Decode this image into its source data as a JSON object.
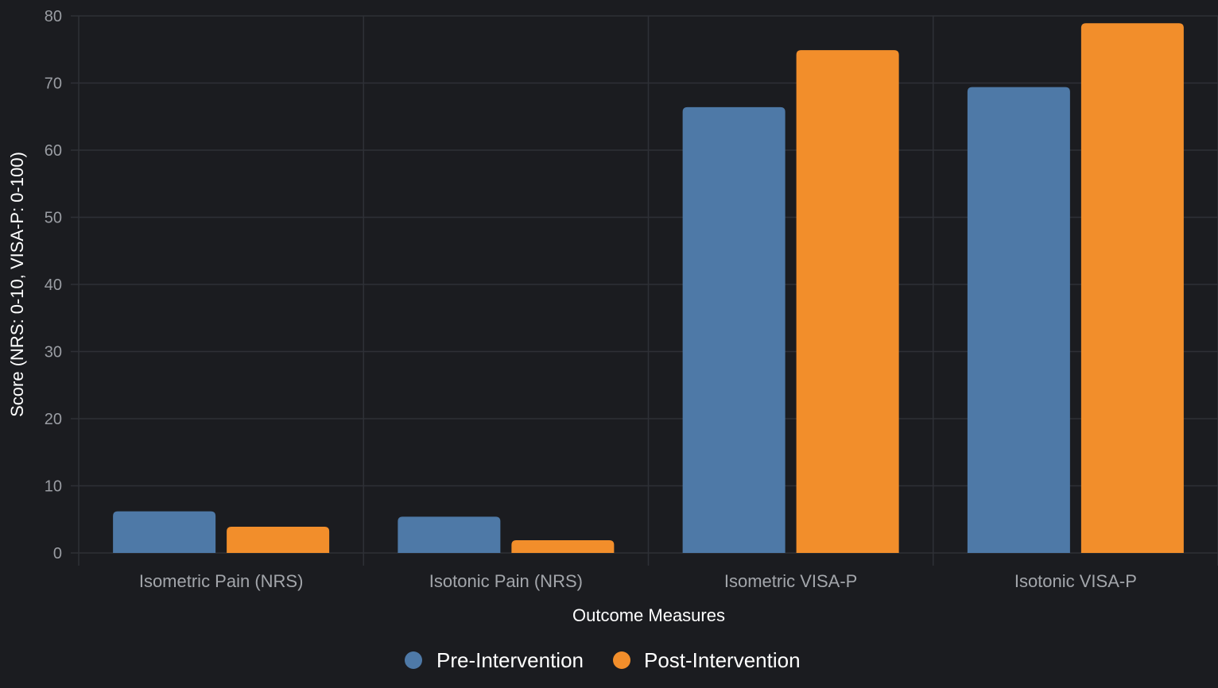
{
  "chart_data": {
    "type": "bar",
    "title": "",
    "xlabel": "Outcome Measures",
    "ylabel": "Score (NRS: 0-10, VISA-P: 0-100)",
    "ylim": [
      0,
      80
    ],
    "yticks": [
      "0",
      "10",
      "20",
      "30",
      "40",
      "50",
      "60",
      "70",
      "80"
    ],
    "categories": [
      "Isometric Pain (NRS)",
      "Isotonic Pain (NRS)",
      "Isometric VISA-P",
      "Isotonic VISA-P"
    ],
    "series": [
      {
        "name": "Pre-Intervention",
        "color": "#4e79a7",
        "values": [
          6.2,
          5.4,
          66.4,
          69.4
        ]
      },
      {
        "name": "Post-Intervention",
        "color": "#f28e2b",
        "values": [
          3.9,
          1.9,
          74.9,
          78.9
        ]
      }
    ],
    "grid": true,
    "legend_position": "bottom-center",
    "background": "#1b1c20"
  }
}
